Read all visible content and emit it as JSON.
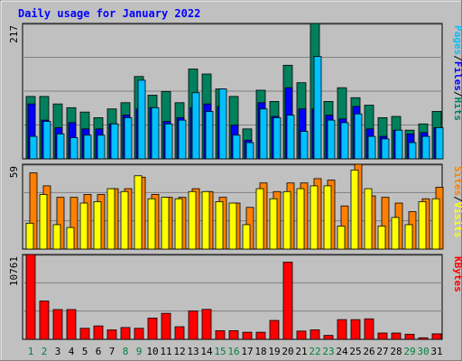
{
  "title": "Daily usage for January 2022",
  "colors": {
    "background": "#c0c0c0",
    "plot": "#c0c0c0",
    "title": "#0000ff",
    "hits": "#00805c",
    "files": "#0000ff",
    "pages": "#00c0ff",
    "visits": "#ffff00",
    "sites": "#ff8000",
    "kbytes": "#ff0000",
    "weekday_label": "#008000",
    "weekend_label": "#008040"
  },
  "chart_data": [
    {
      "type": "bar",
      "name": "hits-files-pages",
      "ymax_label": "217",
      "ylim": [
        0,
        217
      ],
      "legend": [
        "Pages",
        "/",
        "Files",
        "/",
        "Hits"
      ],
      "categories": [
        "1",
        "2",
        "3",
        "4",
        "5",
        "6",
        "7",
        "8",
        "9",
        "10",
        "11",
        "12",
        "13",
        "14",
        "15",
        "16",
        "17",
        "18",
        "19",
        "20",
        "21",
        "22",
        "23",
        "24",
        "25",
        "26",
        "27",
        "28",
        "29",
        "30",
        "31"
      ],
      "series": [
        {
          "name": "Hits",
          "values": [
            100,
            100,
            88,
            82,
            75,
            66,
            80,
            90,
            132,
            102,
            108,
            90,
            144,
            136,
            112,
            100,
            48,
            110,
            92,
            150,
            122,
            217,
            92,
            114,
            98,
            86,
            66,
            68,
            46,
            56,
            76
          ]
        },
        {
          "name": "Files",
          "values": [
            88,
            62,
            50,
            58,
            48,
            48,
            56,
            70,
            80,
            82,
            60,
            66,
            82,
            88,
            84,
            54,
            30,
            90,
            68,
            114,
            80,
            80,
            70,
            64,
            84,
            48,
            36,
            46,
            40,
            42,
            50
          ]
        },
        {
          "name": "Pages",
          "values": [
            36,
            60,
            40,
            34,
            38,
            38,
            56,
            66,
            126,
            82,
            56,
            62,
            106,
            76,
            112,
            38,
            26,
            80,
            66,
            70,
            44,
            164,
            62,
            58,
            72,
            36,
            32,
            46,
            26,
            36,
            50
          ]
        }
      ]
    },
    {
      "type": "bar",
      "name": "visits-sites",
      "ymax_label": "59",
      "ylim": [
        0,
        59
      ],
      "legend": [
        "Sites",
        "/",
        "Visits"
      ],
      "categories": [
        "1",
        "2",
        "3",
        "4",
        "5",
        "6",
        "7",
        "8",
        "9",
        "10",
        "11",
        "12",
        "13",
        "14",
        "15",
        "16",
        "17",
        "18",
        "19",
        "20",
        "21",
        "22",
        "23",
        "24",
        "25",
        "26",
        "27",
        "28",
        "29",
        "30",
        "31"
      ],
      "series": [
        {
          "name": "Visits",
          "values": [
            18,
            38,
            17,
            15,
            32,
            33,
            42,
            40,
            51,
            35,
            36,
            35,
            40,
            40,
            33,
            32,
            17,
            42,
            35,
            40,
            42,
            44,
            44,
            16,
            55,
            42,
            16,
            22,
            17,
            33,
            35
          ]
        },
        {
          "name": "Sites",
          "values": [
            53,
            44,
            36,
            36,
            38,
            38,
            42,
            42,
            50,
            38,
            36,
            36,
            42,
            40,
            36,
            32,
            29,
            46,
            40,
            46,
            46,
            49,
            48,
            30,
            59,
            37,
            36,
            32,
            26,
            35,
            43
          ]
        }
      ]
    },
    {
      "type": "bar",
      "name": "kbytes",
      "ymax_label": "10761",
      "ylim": [
        0,
        10761
      ],
      "legend": [
        "KBytes"
      ],
      "categories": [
        "1",
        "2",
        "3",
        "4",
        "5",
        "6",
        "7",
        "8",
        "9",
        "10",
        "11",
        "12",
        "13",
        "14",
        "15",
        "16",
        "17",
        "18",
        "19",
        "20",
        "21",
        "22",
        "23",
        "24",
        "25",
        "26",
        "27",
        "28",
        "29",
        "30",
        "31"
      ],
      "weekend_days": [
        "1",
        "2",
        "8",
        "9",
        "15",
        "16",
        "22",
        "23",
        "29",
        "30"
      ],
      "series": [
        {
          "name": "KBytes",
          "values": [
            10761,
            4860,
            3780,
            3780,
            1400,
            1700,
            1200,
            1500,
            1400,
            2700,
            3300,
            1600,
            3600,
            3800,
            1100,
            1100,
            900,
            900,
            2400,
            9800,
            1050,
            1200,
            500,
            2500,
            2500,
            2600,
            800,
            800,
            650,
            200,
            700
          ]
        }
      ]
    }
  ]
}
